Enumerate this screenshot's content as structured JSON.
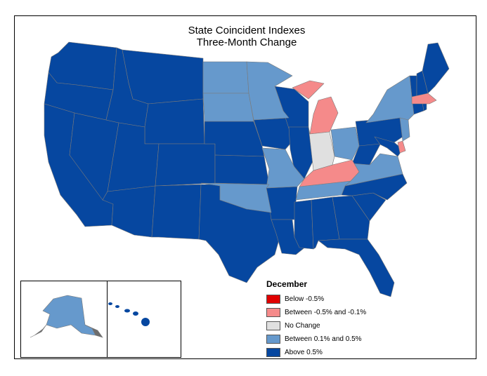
{
  "title": {
    "line1": "State Coincident Indexes",
    "line2": "Three-Month Change"
  },
  "legend": {
    "title": "December",
    "items": [
      {
        "label": "Below -0.5%",
        "color": "#e00000"
      },
      {
        "label": "Between -0.5% and -0.1%",
        "color": "#f58a8a"
      },
      {
        "label": "No Change",
        "color": "#e0e0e0"
      },
      {
        "label": "Between 0.1% and 0.5%",
        "color": "#6699cc"
      },
      {
        "label": "Above 0.5%",
        "color": "#0647a0"
      }
    ]
  },
  "states": {
    "between_neg05_neg01": [
      "Michigan",
      "Kentucky",
      "Massachusetts",
      "Delaware"
    ],
    "no_change": [
      "Indiana"
    ],
    "between_01_05": [
      "North Dakota",
      "South Dakota",
      "Minnesota",
      "Missouri",
      "Oklahoma",
      "Ohio",
      "Virginia",
      "Tennessee",
      "New York",
      "New Jersey",
      "Alaska"
    ],
    "above_05": [
      "Washington",
      "Oregon",
      "California",
      "Nevada",
      "Idaho",
      "Montana",
      "Wyoming",
      "Utah",
      "Arizona",
      "Colorado",
      "New Mexico",
      "Nebraska",
      "Kansas",
      "Texas",
      "Iowa",
      "Arkansas",
      "Louisiana",
      "Wisconsin",
      "Illinois",
      "Mississippi",
      "Alabama",
      "Georgia",
      "Florida",
      "South Carolina",
      "North Carolina",
      "West Virginia",
      "Pennsylvania",
      "Maryland",
      "Connecticut",
      "Rhode Island",
      "Vermont",
      "New Hampshire",
      "Maine",
      "Hawaii"
    ]
  }
}
